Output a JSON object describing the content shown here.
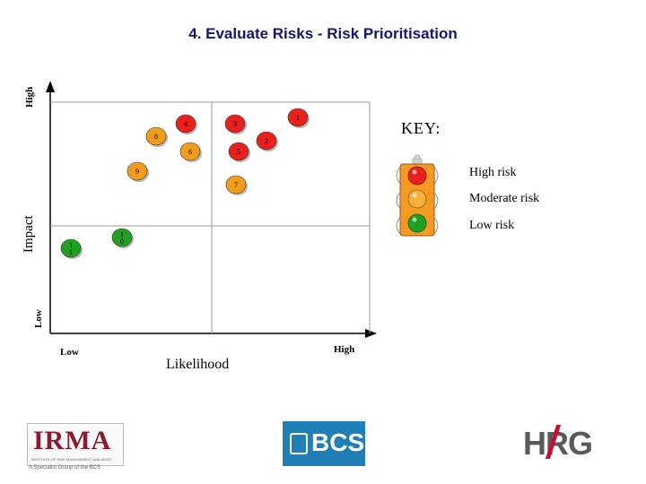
{
  "title": "4. Evaluate Risks - Risk Prioritisation",
  "axes": {
    "y_high": "High",
    "y_label": "Impact",
    "y_low": "Low",
    "x_low": "Low",
    "x_label": "Likelihood",
    "x_high": "High"
  },
  "risks": [
    {
      "label": "1",
      "level": "high"
    },
    {
      "label": "2",
      "level": "high"
    },
    {
      "label": "3",
      "level": "high"
    },
    {
      "label": "4",
      "level": "high"
    },
    {
      "label": "5",
      "level": "high"
    },
    {
      "label": "6",
      "level": "moderate"
    },
    {
      "label": "7",
      "level": "moderate"
    },
    {
      "label": "8",
      "level": "moderate"
    },
    {
      "label": "9",
      "level": "moderate"
    },
    {
      "label": "10",
      "level": "low"
    },
    {
      "label": "11",
      "level": "low"
    }
  ],
  "key": {
    "title": "KEY:",
    "high": "High risk",
    "moderate": "Moderate risk",
    "low": "Low risk"
  },
  "colors": {
    "high": "#e8211d",
    "moderate": "#f39c1b",
    "low": "#22a022",
    "title": "#16166e",
    "light_housing": "#f29a22"
  },
  "logos": {
    "irma": "IRMA",
    "irma_subtitle": "INSTITUTE OF RISK MANAGEMENT AND AUDIT",
    "irma_tagline": "A Specialist Group of the BCS",
    "bcs": "BCS",
    "hrg": "HRG"
  }
}
